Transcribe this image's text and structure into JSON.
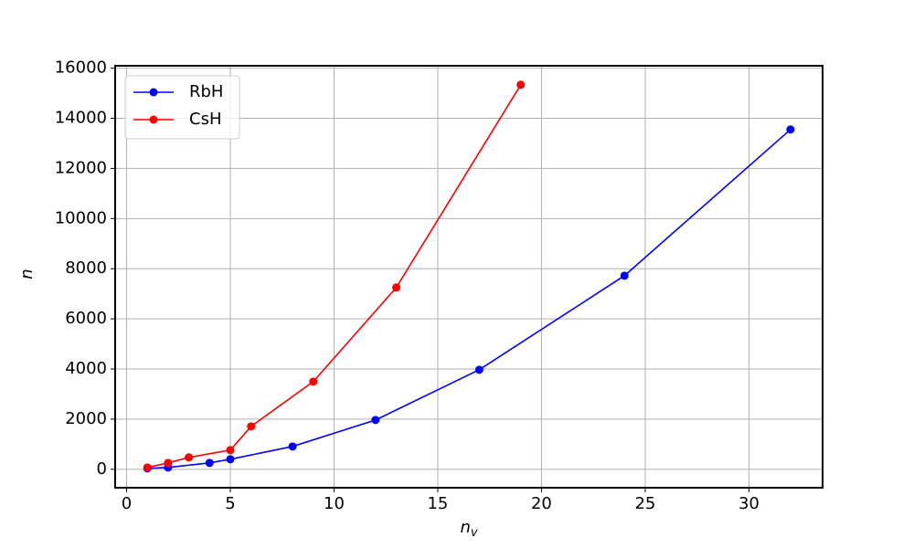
{
  "chart_data": {
    "type": "line",
    "xlabel": [
      "n",
      "v"
    ],
    "ylabel": "n",
    "xlim": [
      -0.55,
      33.55
    ],
    "ylim": [
      -735,
      16095
    ],
    "xticks": [
      0,
      5,
      10,
      15,
      20,
      25,
      30
    ],
    "yticks": [
      0,
      2000,
      4000,
      6000,
      8000,
      10000,
      12000,
      14000,
      16000
    ],
    "grid": true,
    "legend": "upper left",
    "series": [
      {
        "name": "RbH",
        "color": "#0000ff",
        "x": [
          1,
          2,
          4,
          5,
          8,
          12,
          17,
          24,
          32
        ],
        "values": [
          36,
          73,
          255,
          400,
          911,
          1967,
          3971,
          7723,
          13552
        ]
      },
      {
        "name": "CsH",
        "color": "#ff0000",
        "x": [
          1,
          2,
          3,
          5,
          6,
          9,
          13,
          19
        ],
        "values": [
          73,
          255,
          474,
          765,
          1712,
          3497,
          7250,
          15337
        ]
      }
    ]
  }
}
